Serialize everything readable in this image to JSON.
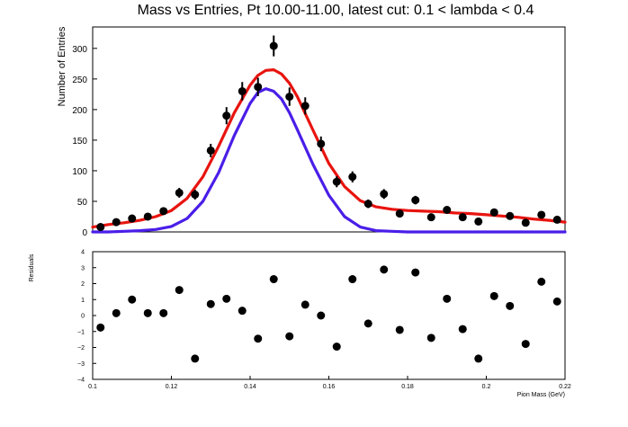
{
  "chart_data": [
    {
      "type": "scatter",
      "title": "Mass vs Entries, Pt 10.00-11.00, latest cut: 0.1 < lambda < 0.4",
      "xlabel": "",
      "ylabel": "Number of Entries",
      "xlim": [
        0.1,
        0.22
      ],
      "ylim": [
        0,
        335
      ],
      "y_ticks": [
        0,
        50,
        100,
        150,
        200,
        250,
        300
      ],
      "grid": false,
      "series": [
        {
          "role": "data-points-with-error-bars",
          "color": "#000000",
          "x": [
            0.102,
            0.106,
            0.11,
            0.114,
            0.118,
            0.122,
            0.126,
            0.13,
            0.134,
            0.138,
            0.142,
            0.146,
            0.15,
            0.154,
            0.158,
            0.162,
            0.166,
            0.17,
            0.174,
            0.178,
            0.182,
            0.186,
            0.19,
            0.194,
            0.198,
            0.202,
            0.206,
            0.21,
            0.214,
            0.218
          ],
          "y": [
            8,
            16,
            22,
            25,
            34,
            64,
            61,
            133,
            190,
            230,
            237,
            304,
            221,
            206,
            144,
            82,
            90,
            46,
            62,
            30,
            52,
            24,
            36,
            24,
            17,
            32,
            26,
            15,
            28,
            20
          ],
          "yerr": [
            3,
            4,
            5,
            5,
            6,
            8,
            8,
            11,
            14,
            15,
            15,
            17,
            15,
            14,
            12,
            9,
            9,
            7,
            8,
            5,
            7,
            5,
            6,
            5,
            4,
            6,
            5,
            4,
            5,
            4
          ]
        },
        {
          "role": "total-fit-curve",
          "color": "#e8140f",
          "x": [
            0.1,
            0.104,
            0.108,
            0.112,
            0.116,
            0.12,
            0.124,
            0.128,
            0.132,
            0.136,
            0.14,
            0.142,
            0.144,
            0.146,
            0.148,
            0.15,
            0.152,
            0.156,
            0.16,
            0.164,
            0.168,
            0.172,
            0.176,
            0.18,
            0.184,
            0.188,
            0.192,
            0.196,
            0.2,
            0.204,
            0.208,
            0.212,
            0.216,
            0.22
          ],
          "y": [
            8,
            12,
            15,
            19,
            25,
            35,
            55,
            90,
            140,
            195,
            240,
            256,
            264,
            265,
            258,
            243,
            221,
            166,
            112,
            74,
            51,
            41,
            37,
            35,
            34,
            33,
            31,
            30,
            28,
            26,
            24,
            21,
            19,
            16
          ]
        },
        {
          "role": "signal-fit-curve",
          "color": "#4a1ee8",
          "x": [
            0.1,
            0.104,
            0.108,
            0.112,
            0.116,
            0.12,
            0.124,
            0.128,
            0.132,
            0.136,
            0.14,
            0.142,
            0.144,
            0.146,
            0.148,
            0.15,
            0.152,
            0.156,
            0.16,
            0.164,
            0.168,
            0.172,
            0.176,
            0.18,
            0.184,
            0.188,
            0.2,
            0.21,
            0.22
          ],
          "y": [
            0,
            0,
            1,
            2,
            4,
            9,
            22,
            50,
            97,
            158,
            210,
            228,
            234,
            230,
            217,
            195,
            167,
            110,
            60,
            25,
            8,
            2,
            1,
            0,
            0,
            0,
            0,
            0,
            0
          ]
        }
      ]
    },
    {
      "type": "scatter",
      "title": "",
      "xlabel": "Pion Mass (GeV)",
      "ylabel": "Residuals",
      "xlim": [
        0.1,
        0.22
      ],
      "ylim": [
        -4,
        4
      ],
      "x_ticks": [
        0.1,
        0.12,
        0.14,
        0.16,
        0.18,
        0.2,
        0.22
      ],
      "x_tick_labels": [
        "0.1",
        "0.12",
        "0.14",
        "0.16",
        "0.18",
        "0.2",
        "0.22"
      ],
      "y_ticks": [
        -4,
        -3,
        -2,
        -1,
        0,
        1,
        2,
        3,
        4
      ],
      "y_tick_labels": [
        "−4",
        "−3",
        "−2",
        "−1",
        "0",
        "1",
        "2",
        "3",
        "4"
      ],
      "grid": false,
      "series": [
        {
          "role": "residual-points",
          "color": "#000000",
          "x": [
            0.102,
            0.106,
            0.11,
            0.114,
            0.118,
            0.122,
            0.126,
            0.13,
            0.134,
            0.138,
            0.142,
            0.146,
            0.15,
            0.154,
            0.158,
            0.162,
            0.166,
            0.17,
            0.174,
            0.178,
            0.182,
            0.186,
            0.19,
            0.194,
            0.198,
            0.202,
            0.206,
            0.21,
            0.214,
            0.218
          ],
          "y": [
            -0.75,
            0.15,
            1.0,
            0.15,
            0.15,
            1.6,
            -2.7,
            0.72,
            1.05,
            0.3,
            -1.45,
            2.28,
            -1.3,
            0.68,
            0.0,
            -1.95,
            2.28,
            -0.5,
            2.88,
            -0.9,
            2.7,
            -1.4,
            1.05,
            -0.85,
            -2.7,
            1.22,
            0.6,
            -1.78,
            2.12,
            0.88
          ]
        }
      ]
    }
  ]
}
